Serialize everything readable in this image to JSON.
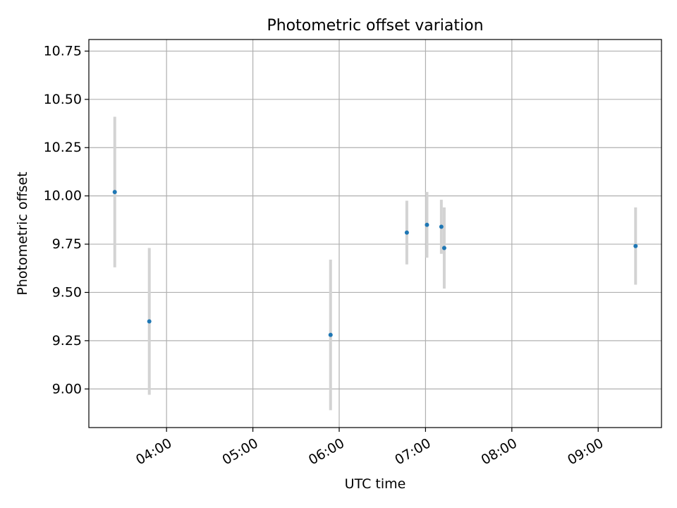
{
  "chart_data": {
    "type": "scatter",
    "title": "Photometric offset variation",
    "xlabel": "UTC time",
    "ylabel": "Photometric offset",
    "x_tick_labels": [
      "04:00",
      "05:00",
      "06:00",
      "07:00",
      "08:00",
      "09:00"
    ],
    "x_ticks": [
      "04:00",
      "05:00",
      "06:00",
      "07:00",
      "08:00",
      "09:00"
    ],
    "xlim": [
      "03:06",
      "09:44"
    ],
    "y_tick_labels": [
      "9.00",
      "9.25",
      "9.50",
      "9.75",
      "10.00",
      "10.25",
      "10.50",
      "10.75"
    ],
    "y_ticks": [
      9.0,
      9.25,
      9.5,
      9.75,
      10.0,
      10.25,
      10.5,
      10.75
    ],
    "ylim": [
      8.8,
      10.81
    ],
    "grid": true,
    "series": [
      {
        "marker_color": "#1f77b4",
        "errorbar_color": "#d3d3d3",
        "points": [
          {
            "x": "03:24",
            "y": 10.02,
            "yerr": 0.39
          },
          {
            "x": "03:48",
            "y": 9.35,
            "yerr": 0.38
          },
          {
            "x": "05:54",
            "y": 9.28,
            "yerr": 0.39
          },
          {
            "x": "06:47",
            "y": 9.81,
            "yerr": 0.165
          },
          {
            "x": "07:01",
            "y": 9.85,
            "yerr": 0.17
          },
          {
            "x": "07:11",
            "y": 9.84,
            "yerr": 0.14
          },
          {
            "x": "07:13",
            "y": 9.73,
            "yerr": 0.21
          },
          {
            "x": "09:26",
            "y": 9.74,
            "yerr": 0.2
          }
        ]
      }
    ]
  }
}
